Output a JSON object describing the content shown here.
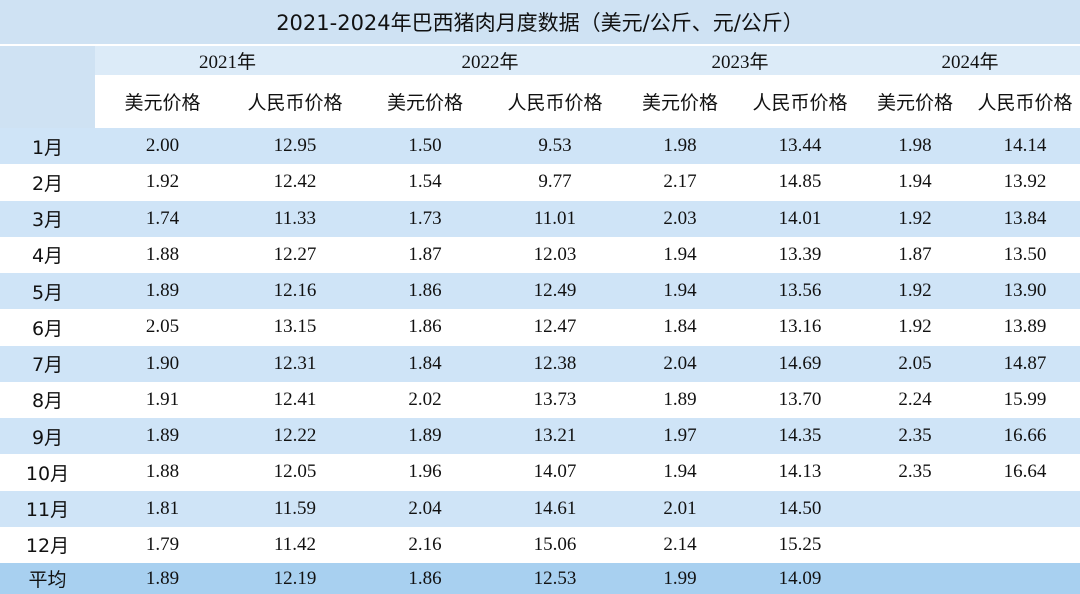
{
  "title": "2021-2024年巴西猪肉月度数据（美元/公斤、元/公斤）",
  "years": [
    "2021年",
    "2022年",
    "2023年",
    "2024年"
  ],
  "column_headers": [
    "美元价格",
    "人民币价格",
    "美元价格",
    "人民币价格",
    "美元价格",
    "人民币价格",
    "美元价格",
    "人民币价格"
  ],
  "rows": [
    {
      "label": "1月",
      "cells": [
        "2.00",
        "12.95",
        "1.50",
        "9.53",
        "1.98",
        "13.44",
        "1.98",
        "14.14"
      ]
    },
    {
      "label": "2月",
      "cells": [
        "1.92",
        "12.42",
        "1.54",
        "9.77",
        "2.17",
        "14.85",
        "1.94",
        "13.92"
      ]
    },
    {
      "label": "3月",
      "cells": [
        "1.74",
        "11.33",
        "1.73",
        "11.01",
        "2.03",
        "14.01",
        "1.92",
        "13.84"
      ]
    },
    {
      "label": "4月",
      "cells": [
        "1.88",
        "12.27",
        "1.87",
        "12.03",
        "1.94",
        "13.39",
        "1.87",
        "13.50"
      ]
    },
    {
      "label": "5月",
      "cells": [
        "1.89",
        "12.16",
        "1.86",
        "12.49",
        "1.94",
        "13.56",
        "1.92",
        "13.90"
      ]
    },
    {
      "label": "6月",
      "cells": [
        "2.05",
        "13.15",
        "1.86",
        "12.47",
        "1.84",
        "13.16",
        "1.92",
        "13.89"
      ]
    },
    {
      "label": "7月",
      "cells": [
        "1.90",
        "12.31",
        "1.84",
        "12.38",
        "2.04",
        "14.69",
        "2.05",
        "14.87"
      ]
    },
    {
      "label": "8月",
      "cells": [
        "1.91",
        "12.41",
        "2.02",
        "13.73",
        "1.89",
        "13.70",
        "2.24",
        "15.99"
      ]
    },
    {
      "label": "9月",
      "cells": [
        "1.89",
        "12.22",
        "1.89",
        "13.21",
        "1.97",
        "14.35",
        "2.35",
        "16.66"
      ]
    },
    {
      "label": "10月",
      "cells": [
        "1.88",
        "12.05",
        "1.96",
        "14.07",
        "1.94",
        "14.13",
        "2.35",
        "16.64"
      ]
    },
    {
      "label": "11月",
      "cells": [
        "1.81",
        "11.59",
        "2.04",
        "14.61",
        "2.01",
        "14.50"
      ]
    },
    {
      "label": "12月",
      "cells": [
        "1.79",
        "11.42",
        "2.16",
        "15.06",
        "2.14",
        "15.25"
      ]
    },
    {
      "label": "平均",
      "cells": [
        "1.89",
        "12.19",
        "1.86",
        "12.53",
        "1.99",
        "14.09"
      ]
    }
  ]
}
